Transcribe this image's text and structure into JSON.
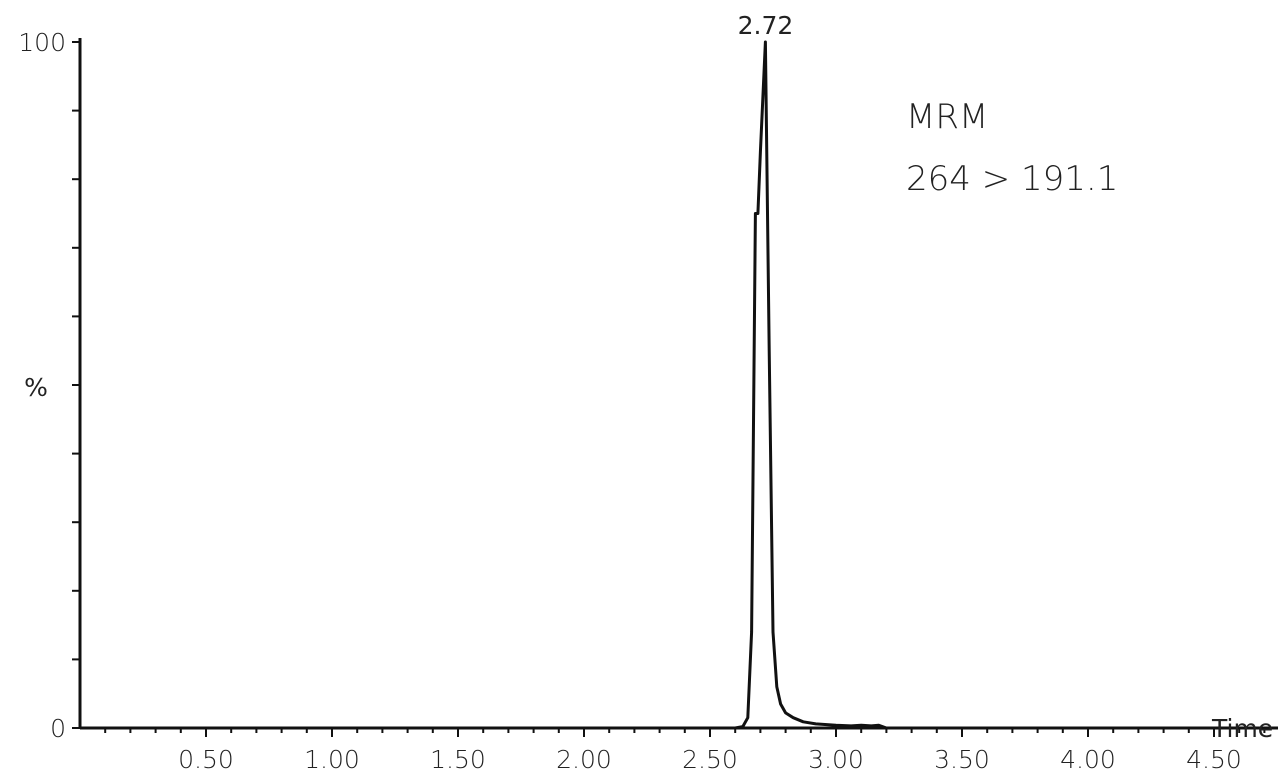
{
  "chart_data": {
    "type": "line",
    "xlabel": "Time",
    "ylabel": "%",
    "xlim": [
      0,
      4.9
    ],
    "ylim": [
      0,
      100
    ],
    "x_tick_labels": [
      "0.50",
      "1.00",
      "1.50",
      "2.00",
      "2.50",
      "3.00",
      "3.50",
      "4.00",
      "4.50"
    ],
    "x_ticks": [
      0.5,
      1.0,
      1.5,
      2.0,
      2.5,
      3.0,
      3.5,
      4.0,
      4.5
    ],
    "y_tick_labels": [
      {
        "value": 0,
        "label": "0"
      },
      {
        "value": 100,
        "label": "100"
      }
    ],
    "annotations": [
      "MRM",
      "264 > 191.1"
    ],
    "peak_label": {
      "x": 2.72,
      "y": 100,
      "text": "2.72"
    },
    "series": [
      {
        "x": [
          0.0,
          2.6,
          2.63,
          2.65,
          2.665,
          2.68,
          2.69,
          2.7,
          2.71,
          2.72,
          2.735,
          2.75,
          2.765,
          2.78,
          2.8,
          2.83,
          2.87,
          2.92,
          3.0,
          3.06,
          3.1,
          3.14,
          3.17,
          3.2,
          4.9
        ],
        "y": [
          0,
          0,
          0.2,
          1.5,
          14,
          75,
          75,
          84,
          92,
          100,
          55,
          14,
          6,
          3.5,
          2.2,
          1.5,
          0.9,
          0.6,
          0.4,
          0.3,
          0.4,
          0.3,
          0.4,
          0,
          0
        ]
      }
    ]
  }
}
